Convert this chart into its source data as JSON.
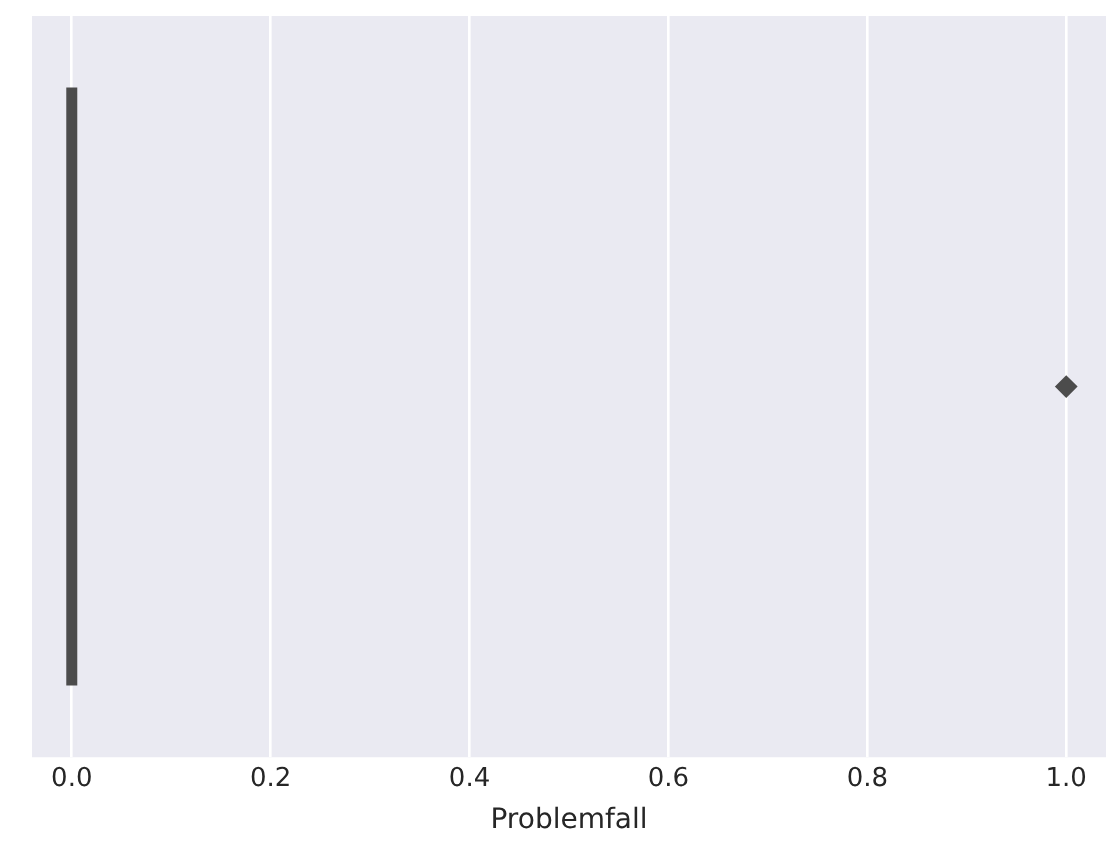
{
  "chart_data": {
    "type": "box",
    "orientation": "horizontal",
    "xlabel": "Problemfall",
    "categories": [
      null
    ],
    "boxes": [
      {
        "low": 0,
        "q1": 0,
        "median": 0,
        "q3": 0,
        "high": 0,
        "outliers": [
          1
        ]
      }
    ],
    "color": "#4c4c4c",
    "xlim": [
      -0.04,
      1.04
    ],
    "xticks": [
      {
        "value": 0,
        "label": "0.0"
      },
      0.2,
      0.4,
      0.6,
      0.8,
      {
        "value": 1,
        "label": "1.0"
      }
    ],
    "grid": "x",
    "marker": "diamond"
  }
}
